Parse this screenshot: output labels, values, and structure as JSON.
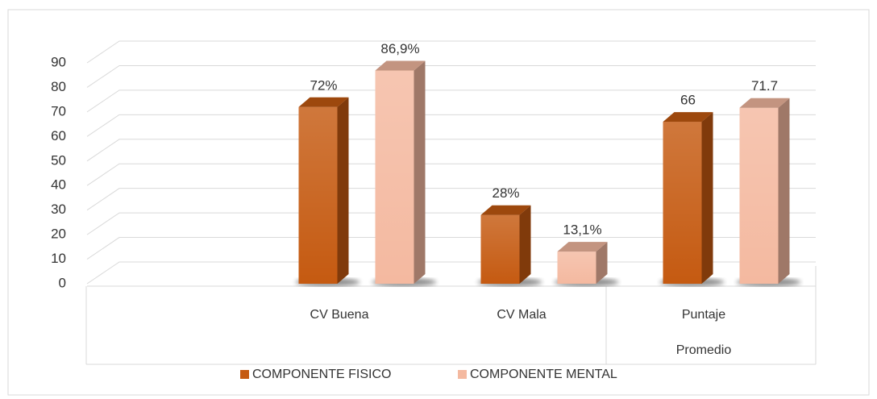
{
  "chart_data": {
    "type": "bar3d",
    "categories": [
      null,
      "CV Buena",
      "CV Mala",
      "Puntaje Promedio"
    ],
    "series": [
      {
        "name": "COMPONENTE FISICO",
        "color": "#c55a11",
        "values": [
          null,
          72,
          28,
          66
        ],
        "value_labels": [
          null,
          "72%",
          "28%",
          "66"
        ]
      },
      {
        "name": "COMPONENTE MENTAL",
        "color": "#f4b9a0",
        "values": [
          null,
          86.9,
          13.1,
          71.7
        ],
        "value_labels": [
          null,
          "86,9%",
          "13,1%",
          "71.7"
        ]
      }
    ],
    "ylim": [
      0,
      90
    ],
    "yticks": [
      0,
      10,
      20,
      30,
      40,
      50,
      60,
      70,
      80,
      90
    ],
    "grid": true,
    "legend": "bottom"
  }
}
